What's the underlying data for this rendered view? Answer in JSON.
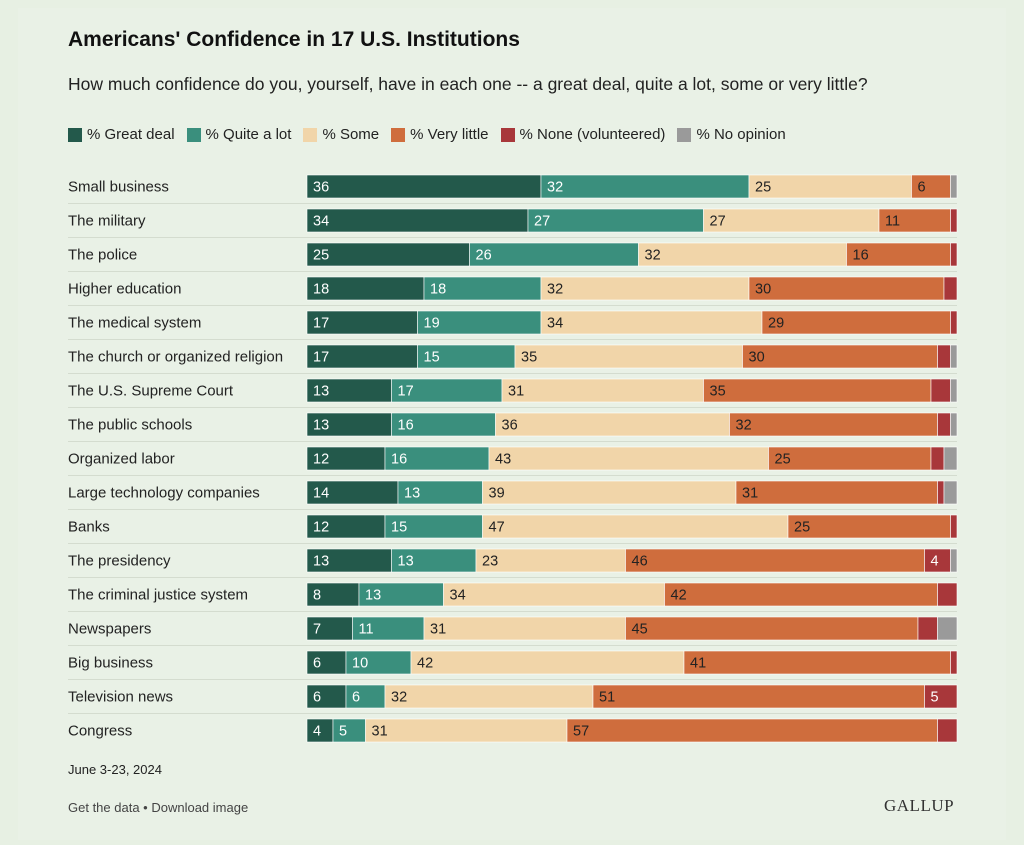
{
  "title": "Americans' Confidence in 17 U.S. Institutions",
  "subtitle": "How much confidence do you, yourself, have in each one -- a great deal, quite a lot, some or very little?",
  "footer": {
    "date": "June 3-23, 2024",
    "get_data": "Get the data",
    "separator": " • ",
    "download": "Download image",
    "brand": "GALLUP"
  },
  "chart_data": {
    "type": "bar",
    "orientation": "horizontal-stacked",
    "legend_position": "top",
    "categories": [
      "Small business",
      "The military",
      "The police",
      "Higher education",
      "The medical system",
      "The church or organized religion",
      "The U.S. Supreme Court",
      "The public schools",
      "Organized labor",
      "Large technology companies",
      "Banks",
      "The presidency",
      "The criminal justice system",
      "Newspapers",
      "Big business",
      "Television news",
      "Congress"
    ],
    "series": [
      {
        "name": "% Great deal",
        "color": "#23594b",
        "values": [
          36,
          34,
          25,
          18,
          17,
          17,
          13,
          13,
          12,
          14,
          12,
          13,
          8,
          7,
          6,
          6,
          4
        ]
      },
      {
        "name": "% Quite a lot",
        "color": "#3a8f7d",
        "values": [
          32,
          27,
          26,
          18,
          19,
          15,
          17,
          16,
          16,
          13,
          15,
          13,
          13,
          11,
          10,
          6,
          5
        ]
      },
      {
        "name": "% Some",
        "color": "#f1d5a9",
        "values": [
          25,
          27,
          32,
          32,
          34,
          35,
          31,
          36,
          43,
          39,
          47,
          23,
          34,
          31,
          42,
          32,
          31
        ]
      },
      {
        "name": "% Very little",
        "color": "#cf6d3d",
        "values": [
          6,
          11,
          16,
          30,
          29,
          30,
          35,
          32,
          25,
          31,
          25,
          46,
          42,
          45,
          41,
          51,
          57
        ]
      },
      {
        "name": "% None (volunteered)",
        "color": "#a8373a",
        "values": [
          0,
          1,
          1,
          2,
          1,
          2,
          3,
          2,
          2,
          1,
          1,
          4,
          3,
          3,
          1,
          5,
          3
        ]
      },
      {
        "name": "% No opinion",
        "color": "#9a9a9a",
        "values": [
          1,
          0,
          0,
          0,
          0,
          1,
          1,
          1,
          2,
          2,
          0,
          1,
          0,
          3,
          0,
          0,
          0
        ]
      }
    ],
    "labels_shown": [
      [
        true,
        true,
        true,
        true,
        false,
        false
      ],
      [
        true,
        true,
        true,
        true,
        false,
        false
      ],
      [
        true,
        true,
        true,
        true,
        false,
        false
      ],
      [
        true,
        true,
        true,
        true,
        false,
        false
      ],
      [
        true,
        true,
        true,
        true,
        false,
        false
      ],
      [
        true,
        true,
        true,
        true,
        false,
        false
      ],
      [
        true,
        true,
        true,
        true,
        false,
        false
      ],
      [
        true,
        true,
        true,
        true,
        false,
        false
      ],
      [
        true,
        true,
        true,
        true,
        false,
        false
      ],
      [
        true,
        true,
        true,
        true,
        false,
        false
      ],
      [
        true,
        true,
        true,
        true,
        false,
        false
      ],
      [
        true,
        true,
        true,
        true,
        true,
        false
      ],
      [
        true,
        true,
        true,
        true,
        false,
        false
      ],
      [
        true,
        true,
        true,
        true,
        false,
        false
      ],
      [
        true,
        true,
        true,
        true,
        false,
        false
      ],
      [
        true,
        true,
        true,
        true,
        true,
        false
      ],
      [
        true,
        true,
        true,
        true,
        false,
        false
      ]
    ],
    "xlim": [
      0,
      100
    ],
    "grid": false
  }
}
